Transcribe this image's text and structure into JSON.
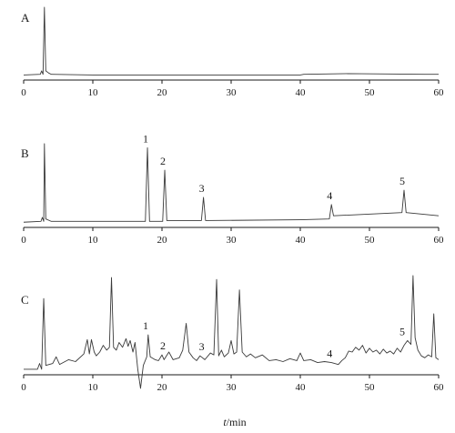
{
  "chart_data": {
    "type": "line",
    "xlabel_symbol": "t",
    "xlabel_unit": "/min",
    "xlim": [
      0,
      60
    ],
    "xticks": [
      0,
      10,
      20,
      30,
      40,
      50,
      60
    ],
    "panels": [
      {
        "id": "A",
        "label": "A",
        "baseline": [
          [
            0,
            0.02
          ],
          [
            2.4,
            0.03
          ],
          [
            2.6,
            0.08
          ],
          [
            2.8,
            0.03
          ],
          [
            3.0,
            1.0
          ],
          [
            3.2,
            0.08
          ],
          [
            3.6,
            0.05
          ],
          [
            4,
            0.03
          ],
          [
            10,
            0.02
          ],
          [
            20,
            0.02
          ],
          [
            30,
            0.02
          ],
          [
            40,
            0.02
          ],
          [
            40.5,
            0.03
          ],
          [
            47,
            0.04
          ],
          [
            58,
            0.03
          ],
          [
            60,
            0.03
          ]
        ],
        "ymax": 1.0,
        "peaks": []
      },
      {
        "id": "B",
        "label": "B",
        "baseline": [
          [
            0,
            0.02
          ],
          [
            2.5,
            0.03
          ],
          [
            2.7,
            0.08
          ],
          [
            2.9,
            0.03
          ],
          [
            3.0,
            1.0
          ],
          [
            3.2,
            0.06
          ],
          [
            4,
            0.03
          ],
          [
            13,
            0.03
          ],
          [
            17.6,
            0.03
          ],
          [
            17.9,
            0.95
          ],
          [
            18.2,
            0.03
          ],
          [
            20.1,
            0.03
          ],
          [
            20.4,
            0.67
          ],
          [
            20.7,
            0.04
          ],
          [
            25.7,
            0.04
          ],
          [
            26.0,
            0.33
          ],
          [
            26.3,
            0.04
          ],
          [
            40,
            0.05
          ],
          [
            44.2,
            0.06
          ],
          [
            44.5,
            0.24
          ],
          [
            44.8,
            0.1
          ],
          [
            54.7,
            0.14
          ],
          [
            55.0,
            0.42
          ],
          [
            55.3,
            0.14
          ],
          [
            60,
            0.1
          ]
        ],
        "ymax": 1.0,
        "peaks": [
          {
            "label": "1",
            "t": 17.9
          },
          {
            "label": "2",
            "t": 20.4
          },
          {
            "label": "3",
            "t": 26.0
          },
          {
            "label": "4",
            "t": 44.5
          },
          {
            "label": "5",
            "t": 55.0
          }
        ]
      },
      {
        "id": "C",
        "label": "C",
        "baseline": [
          [
            0,
            0.02
          ],
          [
            2.0,
            0.02
          ],
          [
            2.3,
            0.08
          ],
          [
            2.6,
            0.02
          ],
          [
            2.9,
            0.76
          ],
          [
            3.2,
            0.06
          ],
          [
            4.2,
            0.08
          ],
          [
            4.7,
            0.15
          ],
          [
            5.2,
            0.07
          ],
          [
            6.5,
            0.12
          ],
          [
            7.5,
            0.1
          ],
          [
            8.7,
            0.18
          ],
          [
            9.2,
            0.33
          ],
          [
            9.5,
            0.18
          ],
          [
            9.8,
            0.33
          ],
          [
            10.2,
            0.2
          ],
          [
            10.5,
            0.16
          ],
          [
            11.0,
            0.2
          ],
          [
            11.5,
            0.27
          ],
          [
            12.0,
            0.22
          ],
          [
            12.4,
            0.25
          ],
          [
            12.7,
            0.98
          ],
          [
            13.0,
            0.25
          ],
          [
            13.4,
            0.22
          ],
          [
            13.8,
            0.3
          ],
          [
            14.3,
            0.25
          ],
          [
            14.8,
            0.34
          ],
          [
            15.1,
            0.26
          ],
          [
            15.4,
            0.32
          ],
          [
            15.8,
            0.2
          ],
          [
            16.1,
            0.3
          ],
          [
            16.5,
            0.02
          ],
          [
            16.9,
            -0.18
          ],
          [
            17.3,
            0.06
          ],
          [
            17.8,
            0.15
          ],
          [
            18.0,
            0.38
          ],
          [
            18.3,
            0.15
          ],
          [
            19.0,
            0.12
          ],
          [
            19.5,
            0.11
          ],
          [
            20.0,
            0.17
          ],
          [
            20.3,
            0.12
          ],
          [
            21.0,
            0.2
          ],
          [
            21.6,
            0.12
          ],
          [
            22.5,
            0.14
          ],
          [
            23.0,
            0.22
          ],
          [
            23.5,
            0.5
          ],
          [
            23.9,
            0.2
          ],
          [
            24.5,
            0.14
          ],
          [
            25.0,
            0.11
          ],
          [
            25.5,
            0.16
          ],
          [
            26.2,
            0.12
          ],
          [
            27.0,
            0.19
          ],
          [
            27.5,
            0.17
          ],
          [
            27.9,
            0.96
          ],
          [
            28.2,
            0.16
          ],
          [
            28.6,
            0.22
          ],
          [
            29.0,
            0.15
          ],
          [
            29.6,
            0.19
          ],
          [
            30.0,
            0.32
          ],
          [
            30.4,
            0.18
          ],
          [
            30.8,
            0.2
          ],
          [
            31.2,
            0.85
          ],
          [
            31.6,
            0.2
          ],
          [
            32.2,
            0.15
          ],
          [
            32.8,
            0.18
          ],
          [
            33.5,
            0.14
          ],
          [
            34.5,
            0.17
          ],
          [
            35.5,
            0.11
          ],
          [
            36.5,
            0.12
          ],
          [
            37.5,
            0.1
          ],
          [
            38.5,
            0.13
          ],
          [
            39.5,
            0.11
          ],
          [
            40.0,
            0.19
          ],
          [
            40.5,
            0.11
          ],
          [
            41.5,
            0.12
          ],
          [
            42.5,
            0.09
          ],
          [
            43.5,
            0.1
          ],
          [
            44.5,
            0.09
          ],
          [
            45.5,
            0.07
          ],
          [
            46.0,
            0.11
          ],
          [
            46.5,
            0.14
          ],
          [
            47.0,
            0.21
          ],
          [
            47.5,
            0.2
          ],
          [
            48.0,
            0.25
          ],
          [
            48.5,
            0.22
          ],
          [
            49.0,
            0.27
          ],
          [
            49.5,
            0.19
          ],
          [
            50.0,
            0.24
          ],
          [
            50.5,
            0.2
          ],
          [
            51.0,
            0.22
          ],
          [
            51.5,
            0.18
          ],
          [
            52.0,
            0.23
          ],
          [
            52.5,
            0.19
          ],
          [
            53.0,
            0.21
          ],
          [
            53.5,
            0.18
          ],
          [
            54.0,
            0.24
          ],
          [
            54.5,
            0.2
          ],
          [
            55.0,
            0.27
          ],
          [
            55.5,
            0.32
          ],
          [
            56.0,
            0.28
          ],
          [
            56.3,
            1.0
          ],
          [
            56.6,
            0.35
          ],
          [
            57.0,
            0.22
          ],
          [
            57.5,
            0.16
          ],
          [
            58.0,
            0.14
          ],
          [
            58.5,
            0.17
          ],
          [
            59.0,
            0.15
          ],
          [
            59.3,
            0.6
          ],
          [
            59.6,
            0.14
          ],
          [
            60,
            0.12
          ]
        ],
        "ymax": 1.0,
        "peaks": [
          {
            "label": "1",
            "t": 17.9
          },
          {
            "label": "2",
            "t": 20.4
          },
          {
            "label": "3",
            "t": 26.0
          },
          {
            "label": "4",
            "t": 44.5
          },
          {
            "label": "5",
            "t": 55.0
          }
        ]
      }
    ]
  }
}
